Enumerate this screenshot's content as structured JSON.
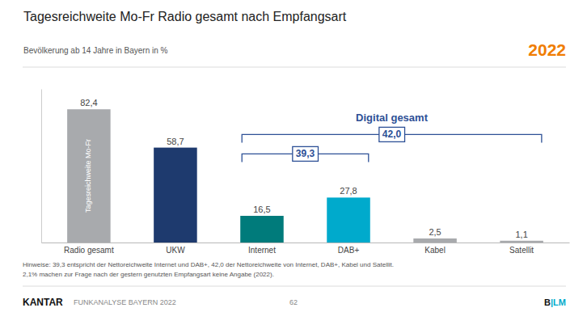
{
  "chart_data": {
    "type": "bar",
    "title": "Tagesreichweite Mo-Fr Radio gesamt nach Empfangsart",
    "subtitle": "Bevölkerung ab 14 Jahre in Bayern in %",
    "year": "2022",
    "categories": [
      "Radio gesamt",
      "UKW",
      "Internet",
      "DAB+",
      "Kabel",
      "Satellit"
    ],
    "values": [
      82.4,
      58.7,
      16.5,
      27.8,
      2.5,
      1.1
    ],
    "value_labels": [
      "82,4",
      "58,7",
      "16,5",
      "27,8",
      "2,5",
      "1,1"
    ],
    "colors": [
      "#a8aaad",
      "#1e3a6e",
      "#007b7b",
      "#00aacc",
      "#a8aaad",
      "#a8aaad"
    ],
    "data_labels": true,
    "tick_labels": "x",
    "ylim": [
      0,
      95
    ],
    "inner_label": {
      "category": "Radio gesamt",
      "text": "Tagesreichweite Mo-Fr"
    },
    "brackets": [
      {
        "label": "42,0",
        "from": "Internet",
        "to": "Satellit",
        "title": "Digital gesamt"
      },
      {
        "label": "39,3",
        "from": "Internet",
        "to": "DAB+"
      }
    ],
    "footnotes": [
      "Hinweise: 39,3 entspricht der Nettoreichweite Internet und DAB+, 42,0 der Nettoreichweite von Internet, DAB+, Kabel und Satellit.",
      "2,1% machen zur Frage nach der gestern genutzten Empfangsart keine Angabe (2022)."
    ],
    "footer": {
      "brand": "KANTAR",
      "study": "FUNKANALYSE BAYERN 2022",
      "page": "62",
      "logo": "B|LM"
    }
  }
}
